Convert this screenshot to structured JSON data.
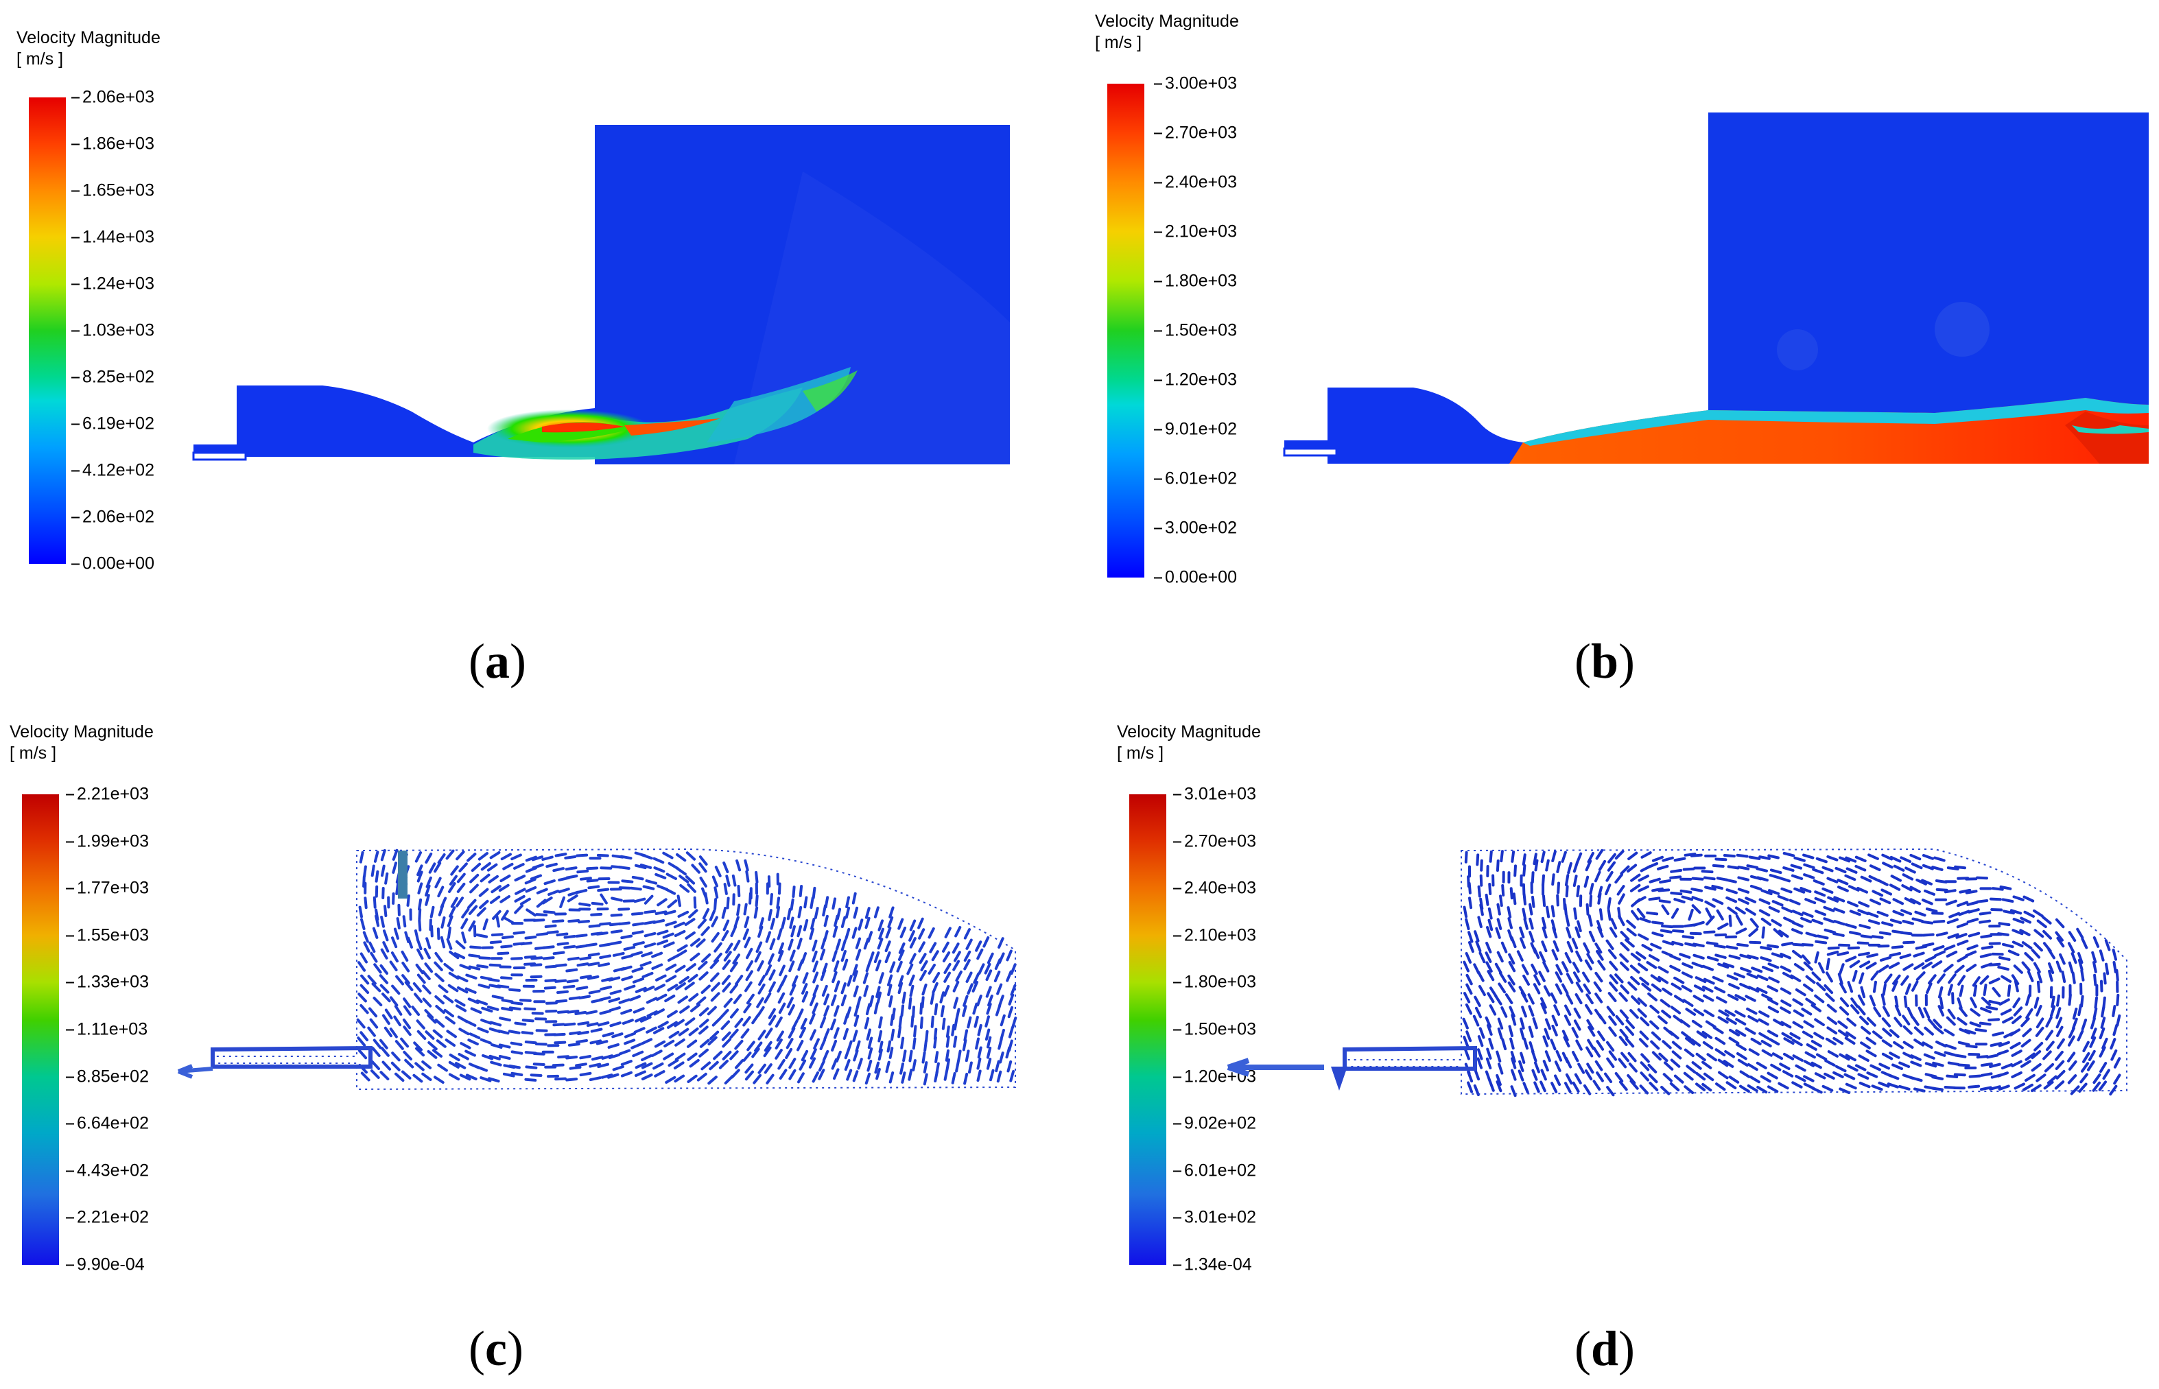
{
  "panels": [
    {
      "id": "a",
      "legend_title": "Velocity Magnitude",
      "legend_unit": "[ m/s ]",
      "colorbar_max": "2.06e+03",
      "ticks": [
        "2.06e+03",
        "1.86e+03",
        "1.65e+03",
        "1.44e+03",
        "1.24e+03",
        "1.03e+03",
        "8.25e+02",
        "6.19e+02",
        "4.12e+02",
        "2.06e+02",
        "0.00e+00"
      ],
      "caption_letter": "a",
      "plot_kind": "contour"
    },
    {
      "id": "b",
      "legend_title": "Velocity Magnitude",
      "legend_unit": "[ m/s ]",
      "colorbar_max": "3.00e+03",
      "ticks": [
        "3.00e+03",
        "2.70e+03",
        "2.40e+03",
        "2.10e+03",
        "1.80e+03",
        "1.50e+03",
        "1.20e+03",
        "9.01e+02",
        "6.01e+02",
        "3.00e+02",
        "0.00e+00"
      ],
      "caption_letter": "b",
      "plot_kind": "contour"
    },
    {
      "id": "c",
      "legend_title": "Velocity Magnitude",
      "legend_unit": "[ m/s ]",
      "colorbar_max": "2.21e+03",
      "ticks": [
        "2.21e+03",
        "1.99e+03",
        "1.77e+03",
        "1.55e+03",
        "1.33e+03",
        "1.11e+03",
        "8.85e+02",
        "6.64e+02",
        "4.43e+02",
        "2.21e+02",
        "9.90e-04"
      ],
      "caption_letter": "c",
      "plot_kind": "vector"
    },
    {
      "id": "d",
      "legend_title": "Velocity Magnitude",
      "legend_unit": "[ m/s ]",
      "colorbar_max": "3.01e+03",
      "ticks": [
        "3.01e+03",
        "2.70e+03",
        "2.40e+03",
        "2.10e+03",
        "1.80e+03",
        "1.50e+03",
        "1.20e+03",
        "9.02e+02",
        "6.01e+02",
        "3.01e+02",
        "1.34e-04"
      ],
      "caption_letter": "d",
      "plot_kind": "vector"
    }
  ],
  "colors": {
    "rainbow_low": "#0000ff",
    "rainbow_mid": "#00ff00",
    "rainbow_high": "#ff0000",
    "field_blue": "#0a2fe0",
    "arrow_blue": "#1d3bd0"
  }
}
